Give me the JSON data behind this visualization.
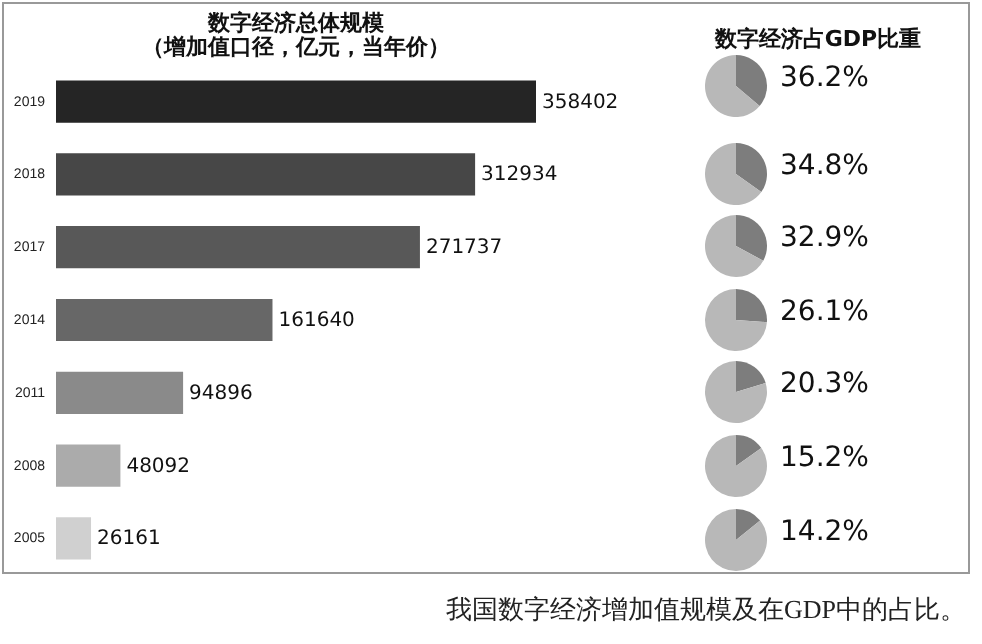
{
  "chart_data": [
    {
      "type": "bar",
      "orientation": "horizontal",
      "title": "数字经济总体规模",
      "subtitle": "（增加值口径，亿元，当年价）",
      "categories": [
        "2019",
        "2018",
        "2017",
        "2014",
        "2011",
        "2008",
        "2005"
      ],
      "values": [
        358402,
        312934,
        271737,
        161640,
        94896,
        48092,
        26161
      ],
      "colors": [
        "#252525",
        "#474747",
        "#585858",
        "#676767",
        "#8a8a8a",
        "#ababab",
        "#d0d0d0"
      ],
      "data_labels": true,
      "annotations": [
        "我国数字经济增加值规模及在GDP中的占比。"
      ]
    },
    {
      "type": "pie",
      "title": "数字经济占GDP比重",
      "categories": [
        null,
        null
      ],
      "values": [
        36.2,
        63.8
      ],
      "colors": [
        "#7d7d7d",
        "#b8b8b8"
      ],
      "value_labels": [
        "36.2%",
        null
      ]
    },
    {
      "type": "pie",
      "categories": [
        null,
        null
      ],
      "values": [
        34.8,
        65.2
      ],
      "colors": [
        "#7d7d7d",
        "#b8b8b8"
      ],
      "value_labels": [
        "34.8%",
        null
      ]
    },
    {
      "type": "pie",
      "categories": [
        null,
        null
      ],
      "values": [
        32.9,
        67.1
      ],
      "colors": [
        "#7d7d7d",
        "#b8b8b8"
      ],
      "value_labels": [
        "32.9%",
        null
      ]
    },
    {
      "type": "pie",
      "categories": [
        null,
        null
      ],
      "values": [
        26.1,
        73.9
      ],
      "colors": [
        "#7d7d7d",
        "#b8b8b8"
      ],
      "value_labels": [
        "26.1%",
        null
      ]
    },
    {
      "type": "pie",
      "categories": [
        null,
        null
      ],
      "values": [
        20.3,
        79.7
      ],
      "colors": [
        "#7d7d7d",
        "#b8b8b8"
      ],
      "value_labels": [
        "20.3%",
        null
      ]
    },
    {
      "type": "pie",
      "categories": [
        null,
        null
      ],
      "values": [
        15.2,
        84.8
      ],
      "colors": [
        "#7d7d7d",
        "#b8b8b8"
      ],
      "value_labels": [
        "15.2%",
        null
      ]
    },
    {
      "type": "pie",
      "categories": [
        null,
        null
      ],
      "values": [
        14.2,
        85.8
      ],
      "colors": [
        "#7d7d7d",
        "#b8b8b8"
      ],
      "value_labels": [
        "14.2%",
        null
      ]
    }
  ]
}
